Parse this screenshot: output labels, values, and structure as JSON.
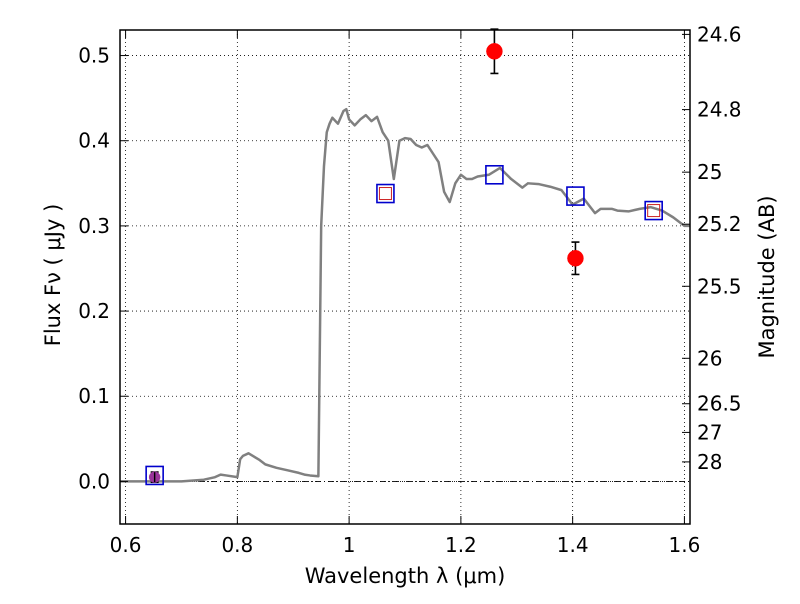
{
  "chart_data": {
    "type": "scatter",
    "title": "",
    "xlabel": "Wavelength  λ (μm)",
    "ylabel": "Flux  Fν  ( μJy )",
    "ylabel_right": "Magnitude (AB)",
    "xlim": [
      0.59,
      1.61
    ],
    "ylim": [
      -0.05,
      0.53
    ],
    "x_ticks": [
      0.6,
      0.8,
      1.0,
      1.2,
      1.4,
      1.6
    ],
    "x_tick_labels": [
      "0.6",
      "0.8",
      "1",
      "1.2",
      "1.4",
      "1.6"
    ],
    "y_ticks": [
      0.0,
      0.1,
      0.2,
      0.3,
      0.4,
      0.5
    ],
    "y_tick_labels": [
      "0.0",
      "0.1",
      "0.2",
      "0.3",
      "0.4",
      "0.5"
    ],
    "right_axis_ticks": [
      {
        "label": "24.6",
        "mag": 24.6
      },
      {
        "label": "24.8",
        "mag": 24.8
      },
      {
        "label": "25",
        "mag": 25.0
      },
      {
        "label": "25.2",
        "mag": 25.2
      },
      {
        "label": "25.5",
        "mag": 25.5
      },
      {
        "label": "26",
        "mag": 26.0
      },
      {
        "label": "26.5",
        "mag": 26.5
      },
      {
        "label": "27",
        "mag": 27.0
      },
      {
        "label": "28",
        "mag": 28.0
      }
    ],
    "grid": true,
    "zero_line": true,
    "colors": {
      "model": "#808080",
      "observed": "#ff0000",
      "model_box": "#0000cc",
      "model_box_inner": "#cc2222",
      "errorbar": "#000000",
      "purple_marker": "#993399"
    },
    "series": [
      {
        "kind": "model_sed",
        "x": [
          0.59,
          0.7,
          0.74,
          0.76,
          0.77,
          0.78,
          0.8,
          0.805,
          0.81,
          0.82,
          0.83,
          0.84,
          0.85,
          0.87,
          0.89,
          0.91,
          0.92,
          0.93,
          0.945,
          0.95,
          0.955,
          0.96,
          0.965,
          0.97,
          0.98,
          0.99,
          0.995,
          1.0,
          1.01,
          1.02,
          1.03,
          1.04,
          1.05,
          1.06,
          1.07,
          1.08,
          1.09,
          1.1,
          1.11,
          1.12,
          1.13,
          1.14,
          1.15,
          1.16,
          1.17,
          1.18,
          1.19,
          1.2,
          1.21,
          1.22,
          1.23,
          1.25,
          1.27,
          1.29,
          1.31,
          1.32,
          1.34,
          1.36,
          1.38,
          1.4,
          1.42,
          1.44,
          1.45,
          1.47,
          1.48,
          1.5,
          1.52,
          1.54,
          1.56,
          1.58,
          1.59,
          1.6,
          1.61
        ],
        "y": [
          0.0,
          0.0,
          0.002,
          0.005,
          0.008,
          0.007,
          0.005,
          0.026,
          0.03,
          0.033,
          0.029,
          0.025,
          0.02,
          0.016,
          0.013,
          0.01,
          0.008,
          0.007,
          0.006,
          0.3,
          0.37,
          0.41,
          0.42,
          0.427,
          0.42,
          0.435,
          0.437,
          0.425,
          0.418,
          0.425,
          0.43,
          0.423,
          0.428,
          0.41,
          0.4,
          0.355,
          0.4,
          0.403,
          0.402,
          0.395,
          0.392,
          0.395,
          0.385,
          0.375,
          0.34,
          0.328,
          0.35,
          0.36,
          0.355,
          0.355,
          0.358,
          0.36,
          0.368,
          0.355,
          0.345,
          0.35,
          0.349,
          0.346,
          0.342,
          0.325,
          0.332,
          0.315,
          0.32,
          0.32,
          0.318,
          0.317,
          0.32,
          0.322,
          0.318,
          0.31,
          0.305,
          0.3,
          0.3
        ]
      },
      {
        "kind": "observed",
        "points": [
          {
            "x": 0.652,
            "y": 0.005,
            "err": 0.006
          },
          {
            "x": 1.26,
            "y": 0.505,
            "err": 0.026
          },
          {
            "x": 1.405,
            "y": 0.262,
            "err": 0.019
          }
        ]
      },
      {
        "kind": "model_photometry",
        "points": [
          {
            "x": 0.652,
            "y": 0.007
          },
          {
            "x": 1.065,
            "y": 0.338
          },
          {
            "x": 1.26,
            "y": 0.36
          },
          {
            "x": 1.405,
            "y": 0.335
          },
          {
            "x": 1.545,
            "y": 0.318
          }
        ]
      }
    ]
  }
}
